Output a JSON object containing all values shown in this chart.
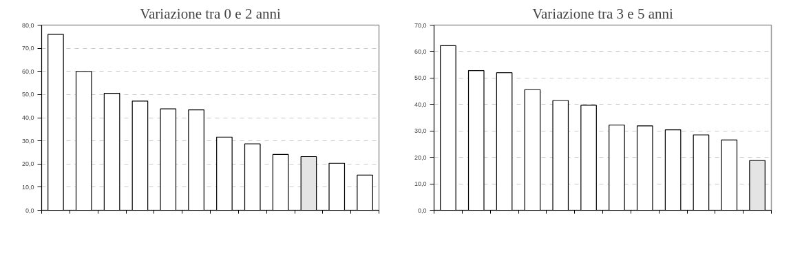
{
  "chart_data": [
    {
      "type": "bar",
      "title": "Variazione tra 0 e 2 anni",
      "categories": [
        null,
        null,
        null,
        null,
        null,
        null,
        null,
        null,
        null,
        null,
        null,
        null
      ],
      "values": [
        76.0,
        60.0,
        50.5,
        47.2,
        43.8,
        43.4,
        31.6,
        28.7,
        24.1,
        23.2,
        20.3,
        15.2
      ],
      "colors": [
        "#ffffff",
        "#ffffff",
        "#ffffff",
        "#ffffff",
        "#ffffff",
        "#ffffff",
        "#ffffff",
        "#ffffff",
        "#ffffff",
        "#e4e4e4",
        "#ffffff",
        "#ffffff"
      ],
      "ylim": [
        0,
        80
      ],
      "yticks": [
        {
          "value": 0,
          "label": "0,0"
        },
        {
          "value": 10,
          "label": "10,0"
        },
        {
          "value": 20,
          "label": "20,0"
        },
        {
          "value": 30,
          "label": "30,0"
        },
        {
          "value": 40,
          "label": "40,0"
        },
        {
          "value": 50,
          "label": "50,0"
        },
        {
          "value": 60,
          "label": "60,0"
        },
        {
          "value": 70,
          "label": "70,0"
        },
        {
          "value": 80,
          "label": "80,0"
        }
      ],
      "grid": "y"
    },
    {
      "type": "bar",
      "title": "Variazione tra 3 e 5 anni",
      "categories": [
        null,
        null,
        null,
        null,
        null,
        null,
        null,
        null,
        null,
        null,
        null,
        null
      ],
      "values": [
        62.2,
        52.8,
        52.0,
        45.6,
        41.5,
        39.7,
        32.2,
        31.9,
        30.4,
        28.5,
        26.6,
        18.8
      ],
      "colors": [
        "#ffffff",
        "#ffffff",
        "#ffffff",
        "#ffffff",
        "#ffffff",
        "#ffffff",
        "#ffffff",
        "#ffffff",
        "#ffffff",
        "#ffffff",
        "#ffffff",
        "#e4e4e4"
      ],
      "ylim": [
        0,
        70
      ],
      "yticks": [
        {
          "value": 0,
          "label": "0,0"
        },
        {
          "value": 10,
          "label": "10,0"
        },
        {
          "value": 20,
          "label": "20,0"
        },
        {
          "value": 30,
          "label": "30,0"
        },
        {
          "value": 40,
          "label": "40,0"
        },
        {
          "value": 50,
          "label": "50,0"
        },
        {
          "value": 60,
          "label": "60,0"
        },
        {
          "value": 70,
          "label": "70,0"
        }
      ],
      "grid": "y"
    }
  ]
}
